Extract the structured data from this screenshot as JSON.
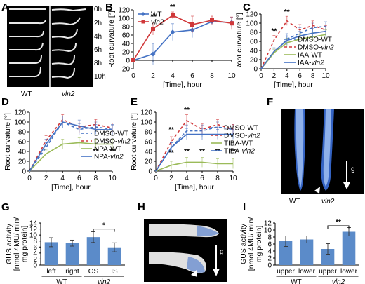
{
  "panel_labels": {
    "A": "A",
    "B": "B",
    "C": "C",
    "D": "D",
    "E": "E",
    "F": "F",
    "G": "G",
    "H": "H",
    "I": "I"
  },
  "panel_a": {
    "times": [
      "0h",
      "2h",
      "4h",
      "6h",
      "8h",
      "10h"
    ],
    "col_wt": "WT",
    "col_vln2": "vln2"
  },
  "panel_f": {
    "wt": "WT",
    "vln2": "vln2",
    "gravity": "g"
  },
  "panel_h": {
    "wt": "WT",
    "vln2": "vln2",
    "gravity": "g"
  },
  "colors": {
    "wt": "#4472c4",
    "vln2": "#d0383a",
    "treat": "#9bbb59",
    "bar": "#5b8bc9"
  },
  "chart_data": [
    {
      "id": "B",
      "type": "line",
      "xlabel": "[Time], hour",
      "ylabel": "Root curvature [°]",
      "xlim": [
        0,
        10
      ],
      "ylim": [
        -20,
        120
      ],
      "xticks": [
        0,
        2,
        4,
        6,
        8,
        10
      ],
      "yticks": [
        -20,
        0,
        20,
        40,
        60,
        80,
        100,
        120
      ],
      "legend": "top-left",
      "series": [
        {
          "name": "WT",
          "color": "#4472c4",
          "dash": "",
          "marker": "diamond",
          "x": [
            0,
            2,
            4,
            6,
            8,
            10
          ],
          "y": [
            0,
            15,
            67,
            72,
            92,
            90
          ],
          "err": [
            2,
            25,
            20,
            18,
            8,
            12
          ]
        },
        {
          "name": "vln2",
          "color": "#d0383a",
          "dash": "",
          "marker": "square",
          "x": [
            0,
            2,
            4,
            6,
            8,
            10
          ],
          "y": [
            0,
            75,
            107,
            85,
            95,
            88
          ],
          "err": [
            2,
            15,
            8,
            20,
            10,
            15
          ]
        }
      ],
      "annotations": [
        {
          "x": 2,
          "y": 98,
          "text": "**"
        },
        {
          "x": 4,
          "y": 122,
          "text": "**"
        }
      ]
    },
    {
      "id": "C",
      "type": "line",
      "xlabel": "[Time], hour",
      "ylabel": "Root curvature [°]",
      "xlim": [
        0,
        10
      ],
      "ylim": [
        0,
        120
      ],
      "xticks": [
        0,
        2,
        4,
        6,
        8,
        10
      ],
      "yticks": [
        0,
        20,
        40,
        60,
        80,
        100,
        120
      ],
      "legend": "bottom-right",
      "series": [
        {
          "name": "DMSO-WT",
          "color": "#4472c4",
          "dash": "4,3",
          "marker": "",
          "x": [
            0,
            2,
            4,
            6,
            8,
            10
          ],
          "y": [
            0,
            35,
            65,
            78,
            90,
            93
          ],
          "err": [
            1,
            8,
            12,
            12,
            10,
            10
          ]
        },
        {
          "name": "DMSO-vln2",
          "color": "#d0383a",
          "dash": "4,3",
          "marker": "",
          "x": [
            0,
            2,
            4,
            6,
            8,
            10
          ],
          "y": [
            0,
            63,
            105,
            85,
            95,
            85
          ],
          "err": [
            1,
            10,
            10,
            12,
            10,
            10
          ]
        },
        {
          "name": "IAA-WT",
          "color": "#9bbb59",
          "dash": "",
          "marker": "",
          "x": [
            0,
            2,
            4,
            6,
            8,
            10
          ],
          "y": [
            0,
            35,
            57,
            65,
            70,
            75
          ],
          "err": [
            1,
            8,
            10,
            10,
            10,
            10
          ]
        },
        {
          "name": "IAA-vln2",
          "color": "#4472c4",
          "dash": "",
          "marker": "",
          "x": [
            0,
            2,
            4,
            6,
            8,
            10
          ],
          "y": [
            0,
            38,
            62,
            72,
            78,
            82
          ],
          "err": [
            1,
            8,
            10,
            10,
            10,
            10
          ]
        }
      ],
      "annotations": [
        {
          "x": 2,
          "y": 78,
          "text": "**"
        },
        {
          "x": 4,
          "y": 120,
          "text": "**"
        }
      ]
    },
    {
      "id": "D",
      "type": "line",
      "xlabel": "[Time], hour",
      "ylabel": "Root curvature [°]",
      "xlim": [
        0,
        10
      ],
      "ylim": [
        0,
        120
      ],
      "xticks": [
        0,
        2,
        4,
        6,
        8,
        10
      ],
      "yticks": [
        0,
        20,
        40,
        60,
        80,
        100,
        120
      ],
      "legend": "bottom-right",
      "series": [
        {
          "name": "DMSO-WT",
          "color": "#4472c4",
          "dash": "4,3",
          "marker": "",
          "x": [
            0,
            2,
            4,
            6,
            8,
            10
          ],
          "y": [
            0,
            48,
            100,
            85,
            90,
            85
          ],
          "err": [
            1,
            10,
            12,
            12,
            10,
            10
          ]
        },
        {
          "name": "DMSO-vln2",
          "color": "#d0383a",
          "dash": "4,3",
          "marker": "",
          "x": [
            0,
            2,
            4,
            6,
            8,
            10
          ],
          "y": [
            0,
            62,
            105,
            90,
            95,
            88
          ],
          "err": [
            1,
            10,
            10,
            12,
            10,
            10
          ]
        },
        {
          "name": "NPA-WT",
          "color": "#9bbb59",
          "dash": "",
          "marker": "",
          "x": [
            0,
            2,
            4,
            6,
            8,
            10
          ],
          "y": [
            0,
            35,
            55,
            58,
            55,
            55
          ],
          "err": [
            1,
            8,
            10,
            10,
            10,
            10
          ]
        },
        {
          "name": "NPA-vln2",
          "color": "#4472c4",
          "dash": "",
          "marker": "",
          "x": [
            0,
            2,
            4,
            6,
            8,
            10
          ],
          "y": [
            0,
            55,
            100,
            92,
            85,
            84
          ],
          "err": [
            1,
            10,
            12,
            12,
            10,
            10
          ]
        }
      ],
      "annotations": [
        {
          "x": 8,
          "y": 36,
          "text": "**"
        },
        {
          "x": 10,
          "y": 36,
          "text": "**"
        }
      ]
    },
    {
      "id": "E",
      "type": "line",
      "xlabel": "[Time], hour",
      "ylabel": "Root curvature [°]",
      "xlim": [
        0,
        10
      ],
      "ylim": [
        0,
        120
      ],
      "xticks": [
        0,
        2,
        4,
        6,
        8,
        10
      ],
      "yticks": [
        0,
        20,
        40,
        60,
        80,
        100,
        120
      ],
      "legend": "right",
      "series": [
        {
          "name": "DMSO-WT",
          "color": "#4472c4",
          "dash": "4,3",
          "marker": "",
          "x": [
            0,
            2,
            4,
            6,
            8,
            10
          ],
          "y": [
            0,
            48,
            82,
            82,
            90,
            85
          ],
          "err": [
            1,
            10,
            12,
            12,
            10,
            10
          ]
        },
        {
          "name": "DMSO-vln2",
          "color": "#d0383a",
          "dash": "4,3",
          "marker": "",
          "x": [
            0,
            2,
            4,
            6,
            8,
            10
          ],
          "y": [
            0,
            60,
            103,
            85,
            95,
            85
          ],
          "err": [
            1,
            10,
            12,
            12,
            10,
            10
          ]
        },
        {
          "name": "TIBA-WT",
          "color": "#9bbb59",
          "dash": "",
          "marker": "",
          "x": [
            0,
            2,
            4,
            6,
            8,
            10
          ],
          "y": [
            0,
            12,
            18,
            18,
            15,
            15
          ],
          "err": [
            1,
            8,
            10,
            10,
            10,
            10
          ]
        },
        {
          "name": "TIBA-vln2",
          "color": "#4472c4",
          "dash": "",
          "marker": "",
          "x": [
            0,
            2,
            4,
            6,
            8,
            10
          ],
          "y": [
            0,
            48,
            75,
            75,
            75,
            75
          ],
          "err": [
            1,
            10,
            12,
            12,
            10,
            10
          ]
        }
      ],
      "annotations": [
        {
          "x": 2,
          "y": 80,
          "text": "**"
        },
        {
          "x": 4,
          "y": 120,
          "text": "**"
        },
        {
          "x": 2,
          "y": 33,
          "text": "**"
        },
        {
          "x": 4,
          "y": 36,
          "text": "**"
        },
        {
          "x": 6,
          "y": 36,
          "text": "**"
        },
        {
          "x": 8,
          "y": 36,
          "text": "**"
        },
        {
          "x": 10,
          "y": 36,
          "text": "**"
        }
      ]
    },
    {
      "id": "G",
      "type": "bar",
      "ylabel": "GUS activity [nmol 4MU/ min/ mg protein]",
      "ylim": [
        0,
        14
      ],
      "yticks": [
        0,
        2,
        4,
        6,
        8,
        10,
        12,
        14
      ],
      "categories": [
        "left",
        "right",
        "OS",
        "IS"
      ],
      "groups": [
        {
          "label": "WT",
          "from": 0,
          "to": 1
        },
        {
          "label": "vln2",
          "from": 2,
          "to": 3
        }
      ],
      "values": [
        7.6,
        7.3,
        9.3,
        5.9
      ],
      "err": [
        1.5,
        1.0,
        1.8,
        1.5
      ],
      "annotations": [
        {
          "from": 2,
          "to": 3,
          "text": "*",
          "y": 12
        }
      ]
    },
    {
      "id": "I",
      "type": "bar",
      "ylabel": "GUS activity [nmol 4MU/ min/ mg protein]",
      "ylim": [
        0,
        12
      ],
      "yticks": [
        0,
        2,
        4,
        6,
        8,
        10,
        12
      ],
      "categories": [
        "upper",
        "lower",
        "upper",
        "lower"
      ],
      "groups": [
        {
          "label": "WT",
          "from": 0,
          "to": 1
        },
        {
          "label": "vln2",
          "from": 2,
          "to": 3
        }
      ],
      "values": [
        6.8,
        7.3,
        4.6,
        9.5
      ],
      "err": [
        1.5,
        1.0,
        1.5,
        1.2
      ],
      "annotations": [
        {
          "from": 2,
          "to": 3,
          "text": "**",
          "y": 11.2
        }
      ]
    }
  ]
}
